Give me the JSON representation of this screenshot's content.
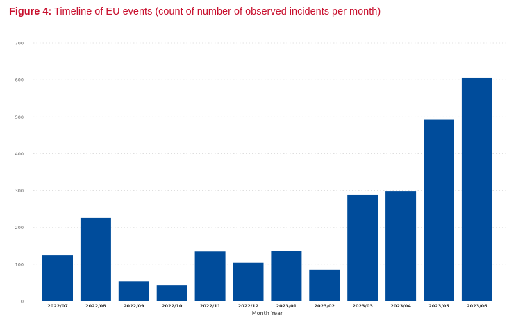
{
  "figure": {
    "label": "Figure 4:",
    "caption": "Timeline of EU events (count of number of observed incidents per month)",
    "accent_color": "#c8102e"
  },
  "chart_data": {
    "type": "bar",
    "title": "Timeline of EU events (count of number of observed incidents per month)",
    "xlabel": "Month Year",
    "ylabel": "",
    "categories": [
      "2022/07",
      "2022/08",
      "2022/09",
      "2022/10",
      "2022/11",
      "2022/12",
      "2023/01",
      "2023/02",
      "2023/03",
      "2023/04",
      "2023/05",
      "2023/06"
    ],
    "values": [
      124,
      226,
      54,
      43,
      135,
      104,
      137,
      85,
      288,
      299,
      492,
      606
    ],
    "ylim": [
      0,
      700
    ],
    "yticks": [
      0,
      100,
      200,
      300,
      400,
      500,
      600,
      700
    ],
    "grid": true,
    "bar_color": "#004c9b"
  }
}
